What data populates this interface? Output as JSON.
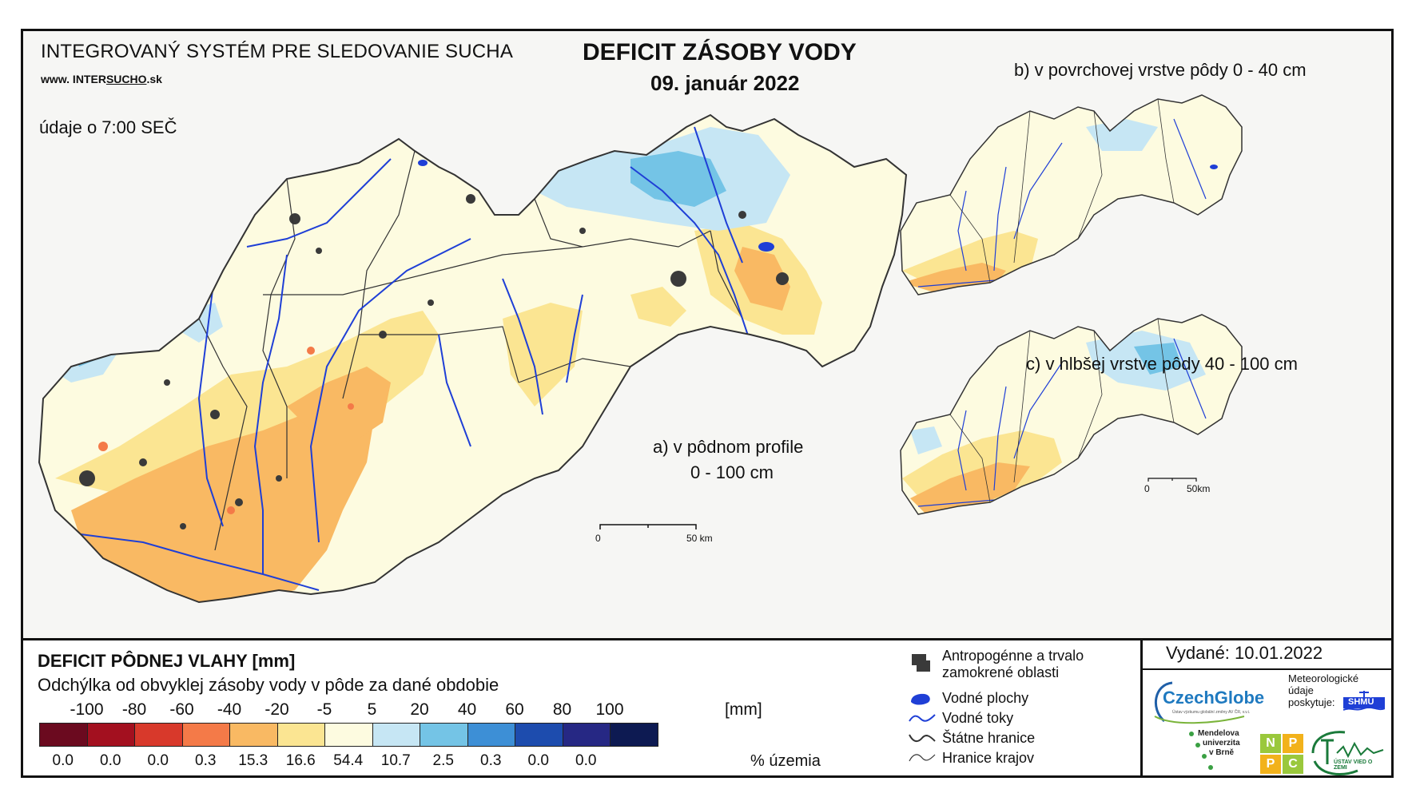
{
  "header": {
    "system_title": "INTEGROVANÝ SYSTÉM PRE SLEDOVANIE SUCHA",
    "website_prefix": "www. INTER",
    "website_mid": "SUCHO",
    "website_suffix": ".sk",
    "data_time": "údaje o 7:00 SEČ",
    "main_title": "DEFICIT ZÁSOBY VODY",
    "date": "09. január 2022"
  },
  "maps": {
    "a_label_1": "a) v pôdnom profile",
    "a_label_2": "0 - 100 cm",
    "b_label": "b) v povrchovej vrstve pôdy 0 - 40 cm",
    "c_label": "c) v hlbšej vrstve pôdy 40 - 100 cm",
    "scale_main": {
      "zero": "0",
      "end": "50 km"
    },
    "scale_small": {
      "zero": "0",
      "end": "50km"
    }
  },
  "legend": {
    "title": "DEFICIT PÔDNEJ VLAHY [mm]",
    "subtitle": "Odchýlka od obvyklej zásoby vody v pôde za dané obdobie",
    "unit": "[mm]",
    "pct_label": "% územia",
    "ticks": [
      "-100",
      "-80",
      "-60",
      "-40",
      "-20",
      "-5",
      "5",
      "20",
      "40",
      "60",
      "80",
      "100"
    ],
    "classes": [
      {
        "color": "#6b0a1f",
        "pct": "0.0"
      },
      {
        "color": "#a3101f",
        "pct": "0.0"
      },
      {
        "color": "#d8392b",
        "pct": "0.0"
      },
      {
        "color": "#f47a48",
        "pct": "0.3"
      },
      {
        "color": "#f9b963",
        "pct": "15.3"
      },
      {
        "color": "#fbe592",
        "pct": "16.6"
      },
      {
        "color": "#fdfbe0",
        "pct": "54.4"
      },
      {
        "color": "#c6e6f4",
        "pct": "10.7"
      },
      {
        "color": "#74c4e6",
        "pct": "2.5"
      },
      {
        "color": "#3d8fd6",
        "pct": "0.3"
      },
      {
        "color": "#1d4cae",
        "pct": "0.0"
      },
      {
        "color": "#262884",
        "pct": "0.0"
      },
      {
        "color": "#0d1a52",
        "pct": ""
      }
    ]
  },
  "map_legend": {
    "urban": "Antropogénne a trvalo zamokrené oblasti",
    "urban_line1": "Antropogénne a trvalo",
    "urban_line2": "zamokrené oblasti",
    "water": "Vodné plochy",
    "rivers": "Vodné toky",
    "state_border": "Štátne hranice",
    "region_border": "Hranice krajov"
  },
  "issue": {
    "issued": "Vydané: 10.01.2022"
  },
  "logos": {
    "czechglobe": "CzechGlobe",
    "czechglobe_sub": "Ústav výzkumu globální změny AV ČR, v.v.i.",
    "meteo_1": "Meteorologické",
    "meteo_2": "údaje",
    "meteo_3": "poskytuje:",
    "shmu": "SHMÚ",
    "mendel_1": "Mendelova",
    "mendel_2": "univerzita",
    "mendel_3": "v Brně",
    "nppc": [
      "N",
      "P",
      "P",
      "C"
    ],
    "uvz": "ÚSTAV VIED O ZEMI"
  },
  "colors": {
    "river": "#1f3fd6",
    "urban": "#3a3a3a",
    "border": "#333333"
  }
}
